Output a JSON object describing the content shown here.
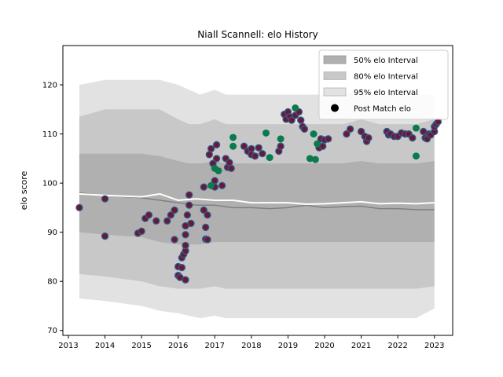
{
  "chart_data": {
    "type": "scatter",
    "title": "Niall Scannell: elo History",
    "xlabel": "",
    "ylabel": "elo score",
    "xlim": [
      2012.85,
      2023.5
    ],
    "ylim": [
      69,
      128
    ],
    "xticks": [
      2013,
      2014,
      2015,
      2016,
      2017,
      2018,
      2019,
      2020,
      2021,
      2022,
      2023
    ],
    "yticks": [
      70,
      80,
      90,
      100,
      110,
      120
    ],
    "legend": {
      "position": "top-right",
      "entries": [
        "50% elo Interval",
        "80% elo Interval",
        "95% elo Interval",
        "Post Match elo"
      ]
    },
    "colors": {
      "band50": "#b0b0b0",
      "band80": "#c8c8c8",
      "band95": "#e2e2e2",
      "median_line": "#808080",
      "mean_line": "#ffffff",
      "loss_point": "#6b1838",
      "win_point": "#0b7a4e",
      "point_edge": "#2e5c8a"
    },
    "bands": {
      "x": [
        2013.3,
        2014.0,
        2015.0,
        2015.5,
        2016.0,
        2016.3,
        2016.6,
        2017.0,
        2017.3,
        2017.6,
        2018.0,
        2018.5,
        2019.0,
        2019.5,
        2020.0,
        2020.5,
        2021.0,
        2021.5,
        2022.0,
        2022.5,
        2023.0
      ],
      "p95_upper": [
        120,
        121,
        121,
        121,
        120,
        119,
        118,
        119,
        118,
        118,
        118,
        118,
        118,
        118,
        118,
        118,
        119,
        118,
        118,
        118,
        118
      ],
      "p80_upper": [
        113.5,
        115,
        115,
        115,
        113,
        112,
        112,
        113,
        112,
        112,
        112,
        112,
        112,
        112,
        112,
        112,
        113,
        112,
        112,
        112,
        113
      ],
      "p50_upper": [
        106,
        106,
        106,
        105.5,
        104.5,
        104,
        104,
        104.5,
        104,
        104,
        104,
        104,
        104,
        104,
        104,
        104,
        104.5,
        104,
        104,
        104,
        104.5
      ],
      "p50_lower": [
        90,
        89.5,
        89,
        88,
        87.5,
        87.5,
        87.5,
        88,
        88,
        88,
        88,
        88,
        88,
        88,
        88,
        88,
        88,
        88,
        88,
        88,
        88
      ],
      "p80_lower": [
        81.5,
        81,
        80,
        79,
        78.5,
        78.5,
        78.5,
        79,
        78.5,
        78.5,
        78.5,
        78.5,
        78.5,
        78.5,
        78.5,
        78.5,
        78.5,
        78.5,
        78.5,
        78.5,
        79
      ],
      "p95_lower": [
        76.5,
        76,
        75,
        74,
        73.5,
        73,
        72.5,
        73,
        72.5,
        72.5,
        72.5,
        72.5,
        72.5,
        72.5,
        72.5,
        72.5,
        72.5,
        72.5,
        72.5,
        72.5,
        74.5
      ]
    },
    "median_line": {
      "x": [
        2013.3,
        2014.0,
        2015.0,
        2015.5,
        2016.0,
        2016.5,
        2017.0,
        2017.5,
        2018.0,
        2018.5,
        2019.0,
        2019.5,
        2020.0,
        2020.5,
        2021.0,
        2021.5,
        2022.0,
        2022.5,
        2023.0
      ],
      "y": [
        98,
        97.5,
        97,
        96.5,
        96,
        95.5,
        95.5,
        95,
        95,
        94.8,
        95,
        95.5,
        95,
        95.2,
        95.3,
        94.8,
        94.8,
        94.6,
        94.6
      ]
    },
    "mean_line": {
      "x": [
        2013.3,
        2014.0,
        2015.0,
        2015.5,
        2016.0,
        2016.5,
        2017.0,
        2017.5,
        2018.0,
        2018.5,
        2019.0,
        2019.5,
        2020.0,
        2020.5,
        2021.0,
        2021.5,
        2022.0,
        2022.5,
        2023.0
      ],
      "y": [
        97.8,
        97.5,
        97.2,
        97.8,
        96.5,
        96.8,
        96.5,
        96.5,
        96.0,
        96.0,
        96.0,
        95.7,
        95.8,
        96.0,
        96.2,
        95.8,
        95.9,
        95.8,
        96.0
      ]
    },
    "post_match_wins": [
      [
        2016.9,
        99.5
      ],
      [
        2017.0,
        103
      ],
      [
        2017.1,
        102.5
      ],
      [
        2017.5,
        107.5
      ],
      [
        2017.5,
        109.3
      ],
      [
        2018.4,
        110.2
      ],
      [
        2018.5,
        105.2
      ],
      [
        2018.8,
        109
      ],
      [
        2019.2,
        115.3
      ],
      [
        2019.6,
        105
      ],
      [
        2019.7,
        110
      ],
      [
        2019.75,
        104.8
      ],
      [
        2019.8,
        108
      ],
      [
        2022.5,
        111.2
      ],
      [
        2022.5,
        105.5
      ]
    ],
    "post_match_losses": [
      [
        2013.3,
        95
      ],
      [
        2014.0,
        96.8
      ],
      [
        2014.0,
        89.2
      ],
      [
        2014.9,
        89.8
      ],
      [
        2015.0,
        90.2
      ],
      [
        2015.1,
        92.8
      ],
      [
        2015.2,
        93.5
      ],
      [
        2015.4,
        92.3
      ],
      [
        2015.7,
        92.3
      ],
      [
        2015.8,
        93.5
      ],
      [
        2015.9,
        94.5
      ],
      [
        2015.9,
        88.5
      ],
      [
        2016.0,
        83
      ],
      [
        2016.0,
        81.2
      ],
      [
        2016.05,
        80.8
      ],
      [
        2016.1,
        82.8
      ],
      [
        2016.1,
        84.8
      ],
      [
        2016.15,
        85.5
      ],
      [
        2016.2,
        86.2
      ],
      [
        2016.2,
        87.3
      ],
      [
        2016.2,
        80.3
      ],
      [
        2016.2,
        89.5
      ],
      [
        2016.2,
        91.3
      ],
      [
        2016.25,
        93.5
      ],
      [
        2016.3,
        95.5
      ],
      [
        2016.3,
        97.6
      ],
      [
        2016.35,
        91.8
      ],
      [
        2016.7,
        94.5
      ],
      [
        2016.7,
        99.2
      ],
      [
        2016.75,
        91
      ],
      [
        2016.75,
        88.6
      ],
      [
        2016.8,
        88.5
      ],
      [
        2016.8,
        93.5
      ],
      [
        2016.85,
        105.8
      ],
      [
        2016.9,
        107
      ],
      [
        2016.95,
        104
      ],
      [
        2017.0,
        99.2
      ],
      [
        2017.0,
        100.5
      ],
      [
        2017.05,
        105
      ],
      [
        2017.05,
        107.8
      ],
      [
        2017.2,
        99.5
      ],
      [
        2017.3,
        105
      ],
      [
        2017.35,
        103.2
      ],
      [
        2017.4,
        104.2
      ],
      [
        2017.45,
        103
      ],
      [
        2017.8,
        107.5
      ],
      [
        2017.9,
        106.5
      ],
      [
        2018.0,
        107
      ],
      [
        2018.0,
        105.8
      ],
      [
        2018.1,
        105.5
      ],
      [
        2018.2,
        107.2
      ],
      [
        2018.3,
        106
      ],
      [
        2018.75,
        106.5
      ],
      [
        2018.8,
        107.5
      ],
      [
        2018.9,
        114
      ],
      [
        2018.95,
        113
      ],
      [
        2019.0,
        114.5
      ],
      [
        2019.05,
        113.5
      ],
      [
        2019.1,
        112.8
      ],
      [
        2019.2,
        113.8
      ],
      [
        2019.3,
        114.5
      ],
      [
        2019.35,
        112.8
      ],
      [
        2019.4,
        111.5
      ],
      [
        2019.45,
        111
      ],
      [
        2019.85,
        107.2
      ],
      [
        2019.9,
        109
      ],
      [
        2019.95,
        107.5
      ],
      [
        2020.0,
        108.8
      ],
      [
        2020.1,
        109
      ],
      [
        2020.6,
        110
      ],
      [
        2020.7,
        111
      ],
      [
        2021.0,
        110.5
      ],
      [
        2021.1,
        109.5
      ],
      [
        2021.15,
        108.5
      ],
      [
        2021.2,
        109.2
      ],
      [
        2021.7,
        110.5
      ],
      [
        2021.75,
        109.8
      ],
      [
        2021.8,
        110
      ],
      [
        2021.9,
        109.5
      ],
      [
        2022.0,
        109.5
      ],
      [
        2022.1,
        110.2
      ],
      [
        2022.2,
        110
      ],
      [
        2022.3,
        110
      ],
      [
        2022.4,
        109.2
      ],
      [
        2022.7,
        110.5
      ],
      [
        2022.75,
        109.2
      ],
      [
        2022.8,
        109
      ],
      [
        2022.85,
        110
      ],
      [
        2022.9,
        109.8
      ],
      [
        2023.0,
        110.5
      ],
      [
        2023.0,
        111.5
      ],
      [
        2023.05,
        112
      ],
      [
        2023.1,
        112.5
      ]
    ]
  }
}
